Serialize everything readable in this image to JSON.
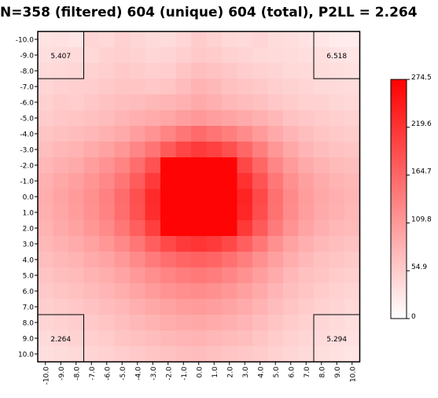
{
  "title": "N=358 (filtered) 604 (unique) 604 (total), P2LL = 2.264",
  "chart_data": {
    "type": "heatmap",
    "title": "N=358 (filtered) 604 (unique) 604 (total), P2LL = 2.264",
    "x_ticks": [
      "-10.0",
      "-9.0",
      "-8.0",
      "-7.0",
      "-6.0",
      "-5.0",
      "-4.0",
      "-3.0",
      "-2.0",
      "-1.0",
      "0.0",
      "1.0",
      "2.0",
      "3.0",
      "4.0",
      "5.0",
      "6.0",
      "7.0",
      "8.0",
      "9.0",
      "10.0"
    ],
    "y_ticks": [
      "-10.0",
      "-9.0",
      "-8.0",
      "-7.0",
      "-6.0",
      "-5.0",
      "-4.0",
      "-3.0",
      "-2.0",
      "-1.0",
      "0.0",
      "1.0",
      "2.0",
      "3.0",
      "4.0",
      "5.0",
      "6.0",
      "7.0",
      "8.0",
      "9.0",
      "10.0"
    ],
    "colorbar": {
      "ticks": [
        "274.5",
        "219.6",
        "164.7",
        "109.8",
        "54.9",
        "0"
      ],
      "min": 0,
      "max": 274.5,
      "color_low": "#ffffff",
      "color_high": "#ff0000"
    },
    "corner_boxes": [
      {
        "corner": "top-left",
        "value": "5.407"
      },
      {
        "corner": "top-right",
        "value": "6.518"
      },
      {
        "corner": "bottom-left",
        "value": "2.264"
      },
      {
        "corner": "bottom-right",
        "value": "5.294"
      }
    ],
    "values": [
      [
        30,
        32,
        28,
        45,
        42,
        50,
        44,
        40,
        38,
        45,
        55,
        48,
        42,
        40,
        45,
        38,
        35,
        30,
        28,
        22,
        20
      ],
      [
        35,
        38,
        40,
        42,
        48,
        52,
        48,
        44,
        46,
        52,
        58,
        56,
        50,
        46,
        42,
        40,
        38,
        36,
        35,
        30,
        28
      ],
      [
        40,
        42,
        44,
        48,
        52,
        58,
        55,
        52,
        54,
        62,
        70,
        66,
        60,
        54,
        50,
        46,
        42,
        40,
        38,
        35,
        32
      ],
      [
        45,
        50,
        52,
        54,
        58,
        62,
        62,
        60,
        64,
        72,
        82,
        76,
        68,
        62,
        58,
        52,
        48,
        45,
        42,
        40,
        38
      ],
      [
        50,
        56,
        54,
        60,
        66,
        70,
        72,
        76,
        80,
        84,
        92,
        86,
        78,
        72,
        68,
        60,
        55,
        50,
        48,
        44,
        42
      ],
      [
        55,
        60,
        62,
        68,
        72,
        80,
        86,
        90,
        96,
        104,
        110,
        104,
        98,
        92,
        84,
        76,
        66,
        60,
        56,
        52,
        48
      ],
      [
        62,
        68,
        72,
        78,
        84,
        92,
        104,
        116,
        132,
        148,
        160,
        150,
        138,
        124,
        108,
        92,
        80,
        70,
        64,
        58,
        55
      ],
      [
        70,
        78,
        82,
        90,
        100,
        112,
        130,
        150,
        178,
        200,
        212,
        205,
        188,
        164,
        138,
        112,
        94,
        80,
        72,
        66,
        62
      ],
      [
        78,
        86,
        92,
        104,
        116,
        132,
        156,
        186,
        270,
        270,
        270,
        270,
        270,
        198,
        164,
        130,
        108,
        92,
        82,
        74,
        70
      ],
      [
        84,
        94,
        102,
        114,
        128,
        148,
        176,
        212,
        270,
        270,
        270,
        270,
        270,
        222,
        184,
        146,
        120,
        102,
        90,
        82,
        76
      ],
      [
        88,
        98,
        108,
        120,
        136,
        158,
        188,
        228,
        270,
        270,
        270,
        270,
        270,
        236,
        196,
        154,
        126,
        106,
        94,
        86,
        80
      ],
      [
        86,
        96,
        106,
        118,
        134,
        156,
        186,
        226,
        270,
        270,
        270,
        270,
        270,
        232,
        192,
        152,
        124,
        104,
        92,
        84,
        78
      ],
      [
        82,
        92,
        100,
        112,
        126,
        146,
        172,
        208,
        270,
        270,
        270,
        270,
        270,
        214,
        178,
        142,
        116,
        98,
        86,
        78,
        74
      ],
      [
        76,
        84,
        90,
        100,
        112,
        128,
        148,
        172,
        196,
        212,
        218,
        212,
        196,
        172,
        146,
        120,
        100,
        86,
        76,
        70,
        66
      ],
      [
        70,
        76,
        82,
        90,
        98,
        110,
        126,
        142,
        156,
        166,
        170,
        166,
        154,
        138,
        120,
        102,
        88,
        76,
        68,
        62,
        58
      ],
      [
        64,
        70,
        74,
        82,
        88,
        98,
        110,
        122,
        132,
        140,
        144,
        140,
        130,
        118,
        104,
        90,
        78,
        68,
        62,
        56,
        52
      ],
      [
        58,
        64,
        68,
        74,
        80,
        88,
        98,
        108,
        116,
        122,
        124,
        120,
        112,
        102,
        92,
        80,
        70,
        62,
        56,
        50,
        46
      ],
      [
        52,
        56,
        60,
        66,
        72,
        78,
        86,
        94,
        100,
        106,
        108,
        104,
        98,
        90,
        82,
        72,
        64,
        56,
        50,
        46,
        42
      ],
      [
        46,
        50,
        54,
        58,
        64,
        70,
        76,
        82,
        88,
        92,
        94,
        90,
        86,
        80,
        72,
        64,
        56,
        50,
        44,
        40,
        36
      ],
      [
        40,
        44,
        48,
        52,
        56,
        62,
        68,
        72,
        76,
        80,
        82,
        78,
        74,
        70,
        64,
        56,
        50,
        44,
        40,
        36,
        32
      ],
      [
        36,
        38,
        42,
        46,
        50,
        54,
        58,
        62,
        66,
        70,
        72,
        68,
        64,
        60,
        56,
        50,
        44,
        40,
        36,
        32,
        28
      ]
    ]
  }
}
